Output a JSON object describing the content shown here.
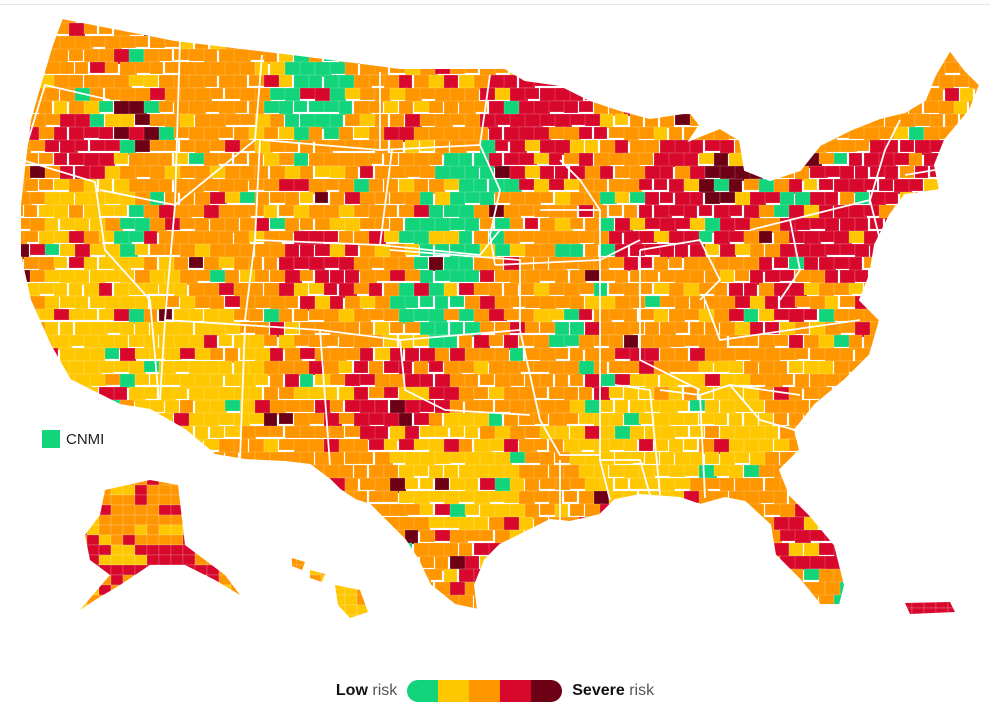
{
  "map": {
    "territory_label": "CNMI",
    "territory_level": 0
  },
  "legend": {
    "low_strong": "Low",
    "low_suffix": "risk",
    "high_strong": "Severe",
    "high_suffix": "risk",
    "levels": [
      {
        "name": "low",
        "color": "#12d47a"
      },
      {
        "name": "medium",
        "color": "#ffc700"
      },
      {
        "name": "high",
        "color": "#ff9600"
      },
      {
        "name": "very-high",
        "color": "#d8082d"
      },
      {
        "name": "severe",
        "color": "#6e0016"
      }
    ]
  },
  "colors": {
    "border": "#ffffff",
    "background": "#ffffff"
  }
}
